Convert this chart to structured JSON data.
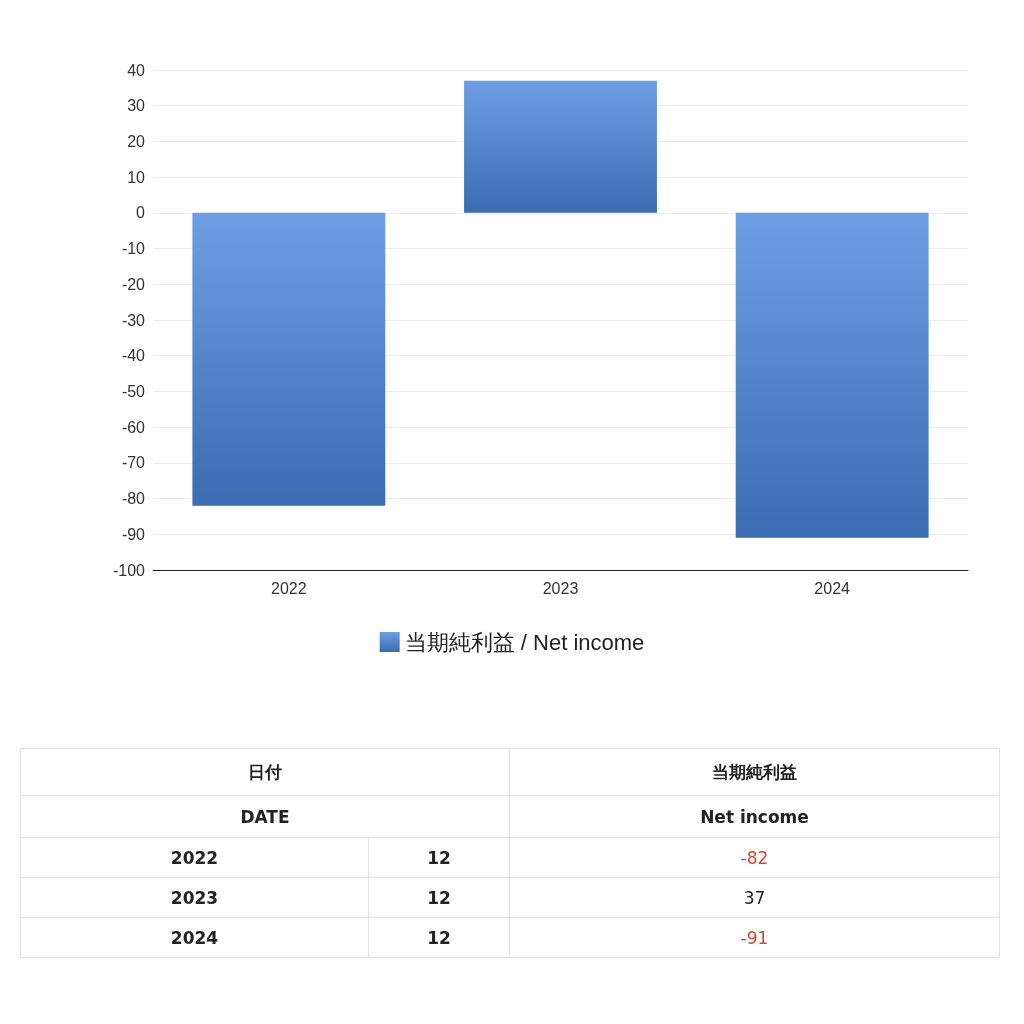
{
  "chart_data": {
    "type": "bar",
    "categories": [
      "2022",
      "2023",
      "2024"
    ],
    "series": [
      {
        "name": "当期純利益 / Net income",
        "color": "#4a86dc",
        "values": [
          -82,
          37,
          -91
        ]
      }
    ],
    "ylim": [
      -100,
      40
    ],
    "yticks": [
      -100,
      -90,
      -80,
      -70,
      -60,
      -50,
      -40,
      -30,
      -20,
      -10,
      0,
      10,
      20,
      30,
      40
    ],
    "grid": "y",
    "legend": "bottom",
    "annotations": [
      "日付",
      "DATE",
      "当期純利益",
      "Net income",
      "12",
      "-82",
      "12",
      "37",
      "12",
      "-91"
    ]
  }
}
